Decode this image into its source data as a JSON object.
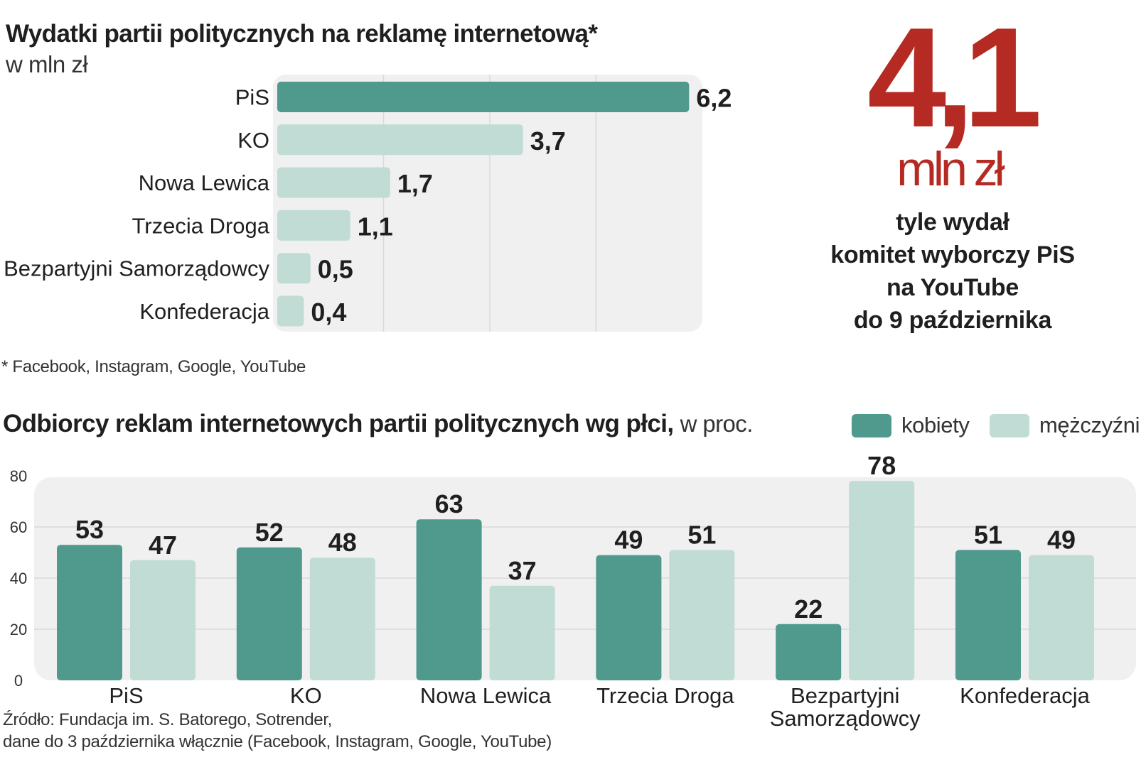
{
  "colors": {
    "primary": "#4f9a8d",
    "secondary": "#c1dcd5",
    "highlight": "#b52a23",
    "panel": "#f0f0f0",
    "text": "#1f1f1f"
  },
  "spend": {
    "title": "Wydatki partii politycznych na reklamę internetową*",
    "subtitle": "w mln zł",
    "footnote": "* Facebook, Instagram, Google, YouTube"
  },
  "highlight": {
    "number": "4,1",
    "unit": "mln zł",
    "lines": [
      "tyle wydał",
      "komitet wyborczy PiS",
      "na YouTube",
      "do 9 października"
    ]
  },
  "audience": {
    "title": "Odbiorcy reklam internetowych partii politycznych wg płci,",
    "unit": "w proc.",
    "legend": {
      "women": "kobiety",
      "men": "mężczyźni"
    }
  },
  "source": {
    "lines": [
      "Źródło: Fundacja im. S. Batorego, Sotrender,",
      "dane do 3 października włącznie (Facebook, Instagram, Google, YouTube)"
    ]
  },
  "chart_data": [
    {
      "type": "bar",
      "orientation": "horizontal",
      "title": "Wydatki partii politycznych na reklamę internetową*",
      "subtitle": "w mln zł",
      "categories": [
        "PiS",
        "KO",
        "Nowa Lewica",
        "Trzecia Droga",
        "Bezpartyjni Samorządowcy",
        "Konfederacja"
      ],
      "values": [
        6.2,
        3.7,
        1.7,
        1.1,
        0.5,
        0.4
      ],
      "value_labels": [
        "6,2",
        "3,7",
        "1,7",
        "1,1",
        "0,5",
        "0,4"
      ],
      "xlim": [
        0,
        6.4
      ],
      "gridlines_at": [
        1.6,
        3.2,
        4.8
      ],
      "highlighted_category": "PiS"
    },
    {
      "type": "bar",
      "orientation": "vertical",
      "title": "Odbiorcy reklam internetowych partii politycznych wg płci,",
      "ylabel": "w proc.",
      "categories": [
        "PiS",
        "KO",
        "Nowa Lewica",
        "Trzecia Droga",
        "Bezpartyjni Samorządowcy",
        "Konfederacja"
      ],
      "category_lines": [
        [
          "PiS"
        ],
        [
          "KO"
        ],
        [
          "Nowa Lewica"
        ],
        [
          "Trzecia Droga"
        ],
        [
          "Bezpartyjni",
          "Samorządowcy"
        ],
        [
          "Konfederacja"
        ]
      ],
      "series": [
        {
          "name": "kobiety",
          "values": [
            53,
            52,
            63,
            49,
            22,
            51
          ]
        },
        {
          "name": "mężczyźni",
          "values": [
            47,
            48,
            37,
            51,
            78,
            49
          ]
        }
      ],
      "ylim": [
        0,
        80
      ],
      "yticks": [
        0,
        20,
        40,
        60,
        80
      ],
      "grid": true,
      "legend_position": "top-right"
    }
  ]
}
